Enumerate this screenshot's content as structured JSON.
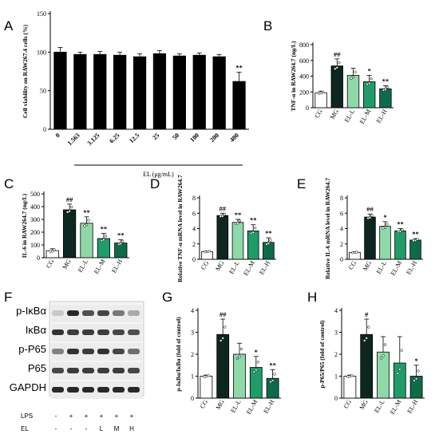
{
  "colors": {
    "CG": "#ffffff",
    "MG": "#0e2620",
    "EL-L": "#8fd9a8",
    "EL-M": "#1f9c68",
    "EL-H": "#0e6b47",
    "black": "#000000"
  },
  "panels": {
    "A": {
      "letter": "A"
    },
    "B": {
      "letter": "B"
    },
    "C": {
      "letter": "C"
    },
    "D": {
      "letter": "D"
    },
    "E": {
      "letter": "E"
    },
    "F": {
      "letter": "F"
    },
    "G": {
      "letter": "G"
    },
    "H": {
      "letter": "H"
    }
  },
  "chart_data": [
    {
      "id": "A",
      "type": "bar",
      "ylabel": "Cell viability on RAW267.4 cells (%)",
      "xlabel": "EL (μg/mL)",
      "categories": [
        "0",
        "1.563",
        "3.125",
        "6.25",
        "12.5",
        "25",
        "50",
        "100",
        "200",
        "400"
      ],
      "values": [
        100,
        97,
        97,
        96,
        94,
        98,
        95,
        96,
        94,
        62
      ],
      "errors": [
        6,
        3,
        4,
        4,
        4,
        4,
        3,
        3,
        3,
        12
      ],
      "ylim": [
        0,
        150
      ],
      "yticks": [
        0,
        50,
        100,
        150
      ],
      "annotations": [
        "",
        "",
        "",
        "",
        "",
        "",
        "",
        "",
        "",
        "**"
      ]
    },
    {
      "id": "B",
      "type": "bar",
      "ylabel": "TNF-α in RAW264.7 (ng/L)",
      "categories": [
        "CG",
        "MG",
        "EL-L",
        "EL-M",
        "EL-H"
      ],
      "values": [
        190,
        530,
        410,
        330,
        240
      ],
      "errors": [
        20,
        90,
        90,
        80,
        40
      ],
      "ylim": [
        0,
        800
      ],
      "yticks": [
        0,
        200,
        400,
        600,
        800
      ],
      "annotations": [
        "",
        "##",
        "",
        "*",
        "**"
      ]
    },
    {
      "id": "C",
      "type": "bar",
      "ylabel": "IL-6 in RAW264.7 (ng/L)",
      "categories": [
        "CG",
        "MG",
        "EL-L",
        "EL-M",
        "EL-H"
      ],
      "values": [
        55,
        375,
        270,
        150,
        115
      ],
      "errors": [
        15,
        45,
        50,
        40,
        25
      ],
      "ylim": [
        0,
        500
      ],
      "yticks": [
        0,
        100,
        200,
        300,
        400,
        500
      ],
      "annotations": [
        "",
        "##",
        "**",
        "**",
        "**"
      ]
    },
    {
      "id": "D",
      "type": "bar",
      "ylabel": "Relative TNF-α mRNA level in RAW264.7",
      "categories": [
        "CG",
        "MG",
        "EL-L",
        "EL-M",
        "EL-H"
      ],
      "values": [
        1.0,
        5.7,
        4.8,
        3.7,
        2.2
      ],
      "errors": [
        0.1,
        0.3,
        0.4,
        0.8,
        0.6
      ],
      "ylim": [
        0,
        8
      ],
      "yticks": [
        0,
        2,
        4,
        6,
        8
      ],
      "annotations": [
        "",
        "##",
        "**",
        "**",
        "**"
      ]
    },
    {
      "id": "E",
      "type": "bar",
      "ylabel": "Relative IL-6 mRNA level in RAW264.7",
      "categories": [
        "CG",
        "MG",
        "EL-L",
        "EL-M",
        "EL-H"
      ],
      "values": [
        0.9,
        5.5,
        4.3,
        3.7,
        2.5
      ],
      "errors": [
        0.1,
        0.4,
        0.6,
        0.3,
        0.2
      ],
      "ylim": [
        0,
        8
      ],
      "yticks": [
        0,
        2,
        4,
        6,
        8
      ],
      "annotations": [
        "",
        "##",
        "*",
        "**",
        "**"
      ]
    },
    {
      "id": "G",
      "type": "bar",
      "ylabel": "p-IκBα/IκBα (fold of control)",
      "categories": [
        "CG",
        "MG",
        "EL-L",
        "EL-M",
        "EL-H"
      ],
      "values": [
        1.0,
        2.9,
        2.0,
        1.4,
        0.9
      ],
      "errors": [
        0.05,
        0.7,
        0.5,
        0.5,
        0.4
      ],
      "ylim": [
        0,
        4
      ],
      "yticks": [
        0,
        1,
        2,
        3,
        4
      ],
      "annotations": [
        "",
        "##",
        "",
        "*",
        "**"
      ]
    },
    {
      "id": "H",
      "type": "bar",
      "ylabel": "p-P65/P65 (fold of control)",
      "categories": [
        "CG",
        "MG",
        "EL-L",
        "EL-M",
        "EL-H"
      ],
      "values": [
        1.0,
        2.9,
        2.1,
        1.6,
        1.0
      ],
      "errors": [
        0.05,
        0.7,
        0.7,
        1.2,
        0.5
      ],
      "ylim": [
        0,
        4
      ],
      "yticks": [
        0,
        1,
        2,
        3,
        4
      ],
      "annotations": [
        "",
        "#",
        "",
        "",
        "*"
      ]
    }
  ],
  "western_blot": {
    "labels": [
      "p-IκBα",
      "IκBα",
      "p-P65",
      "P65",
      "GAPDH"
    ],
    "lps_label": "LPS",
    "el_label": "EL",
    "lps_values": [
      "-",
      "+",
      "+",
      "+",
      "+",
      "+"
    ],
    "el_values": [
      "-",
      "-",
      "-",
      "L",
      "M",
      "H"
    ]
  }
}
